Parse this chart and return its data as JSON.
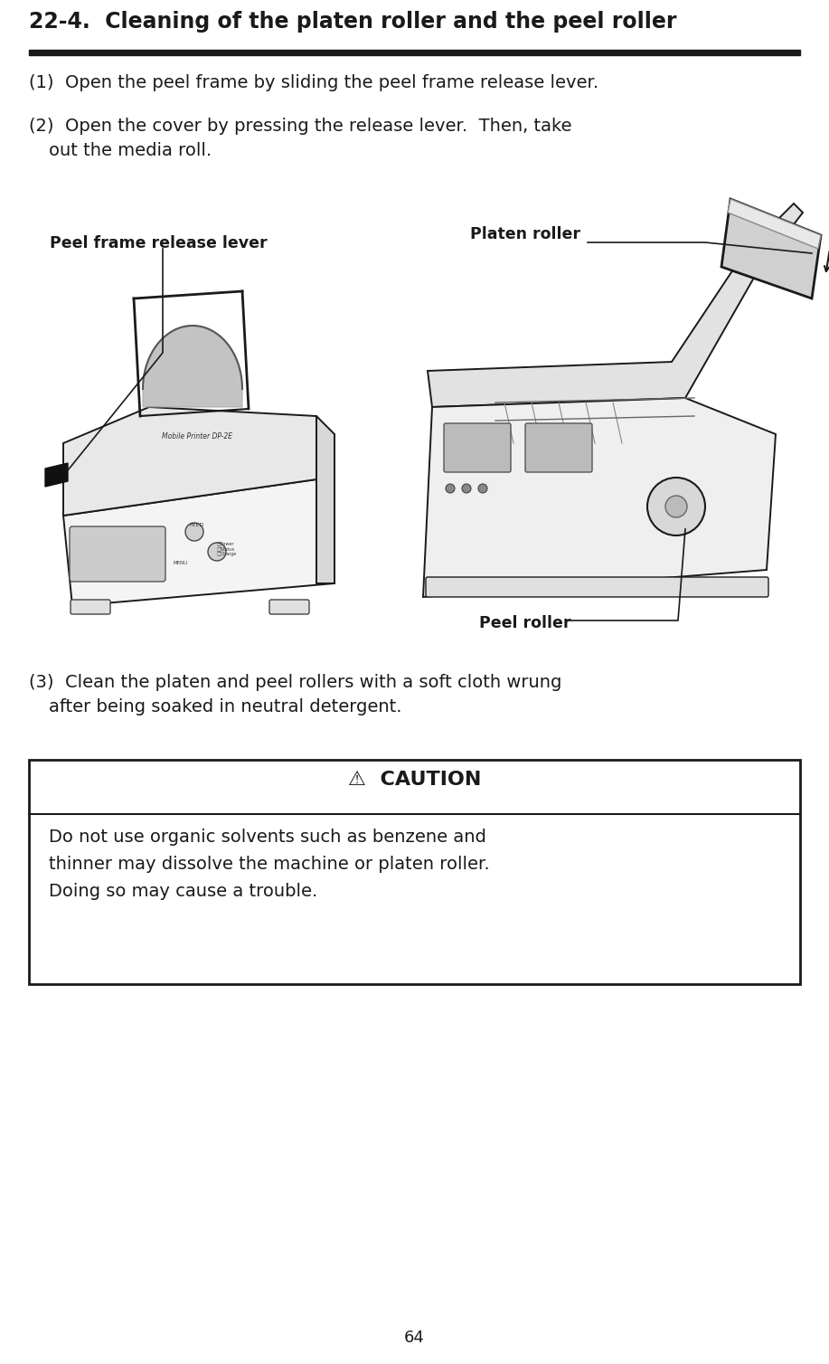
{
  "title": "22-4.  Cleaning of the platen roller and the peel roller",
  "title_fontsize": 17,
  "bg_color": "#ffffff",
  "text_color": "#1a1a1a",
  "step1": "(1)  Open the peel frame by sliding the peel frame release lever.",
  "step2_line1": "(2)  Open the cover by pressing the release lever.  Then, take",
  "step2_line2": "       out the media roll.",
  "step3_line1": "(3)  Clean the platen and peel rollers with a soft cloth wrung",
  "step3_line2": "       after being soaked in neutral detergent.",
  "label_peel_frame": "Peel frame release lever",
  "label_platen": "Platen roller",
  "label_peel_roller": "Peel roller",
  "caution_title": "⚠  CAUTION",
  "caution_line1": "Do not use organic solvents such as benzene and",
  "caution_line2": "thinner may dissolve the machine or platen roller.",
  "caution_line3": "Doing so may cause a trouble.",
  "page_number": "64",
  "step_fontsize": 14,
  "label_fontsize": 12.5,
  "caution_title_fontsize": 16,
  "caution_text_fontsize": 14,
  "ml": 32
}
